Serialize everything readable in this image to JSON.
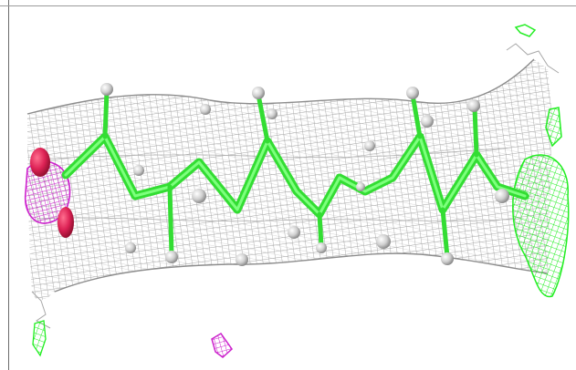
{
  "scene": {
    "colors": {
      "background": "#ffffff",
      "density_mesh": "#9e9e9e",
      "carbon_chain": "#33dd33",
      "hydrogen_atoms": "#d0d0d0",
      "positive_density": "#22ee22",
      "negative_density": "#cc22cc",
      "oxygen_atoms": "#dd2255"
    }
  }
}
